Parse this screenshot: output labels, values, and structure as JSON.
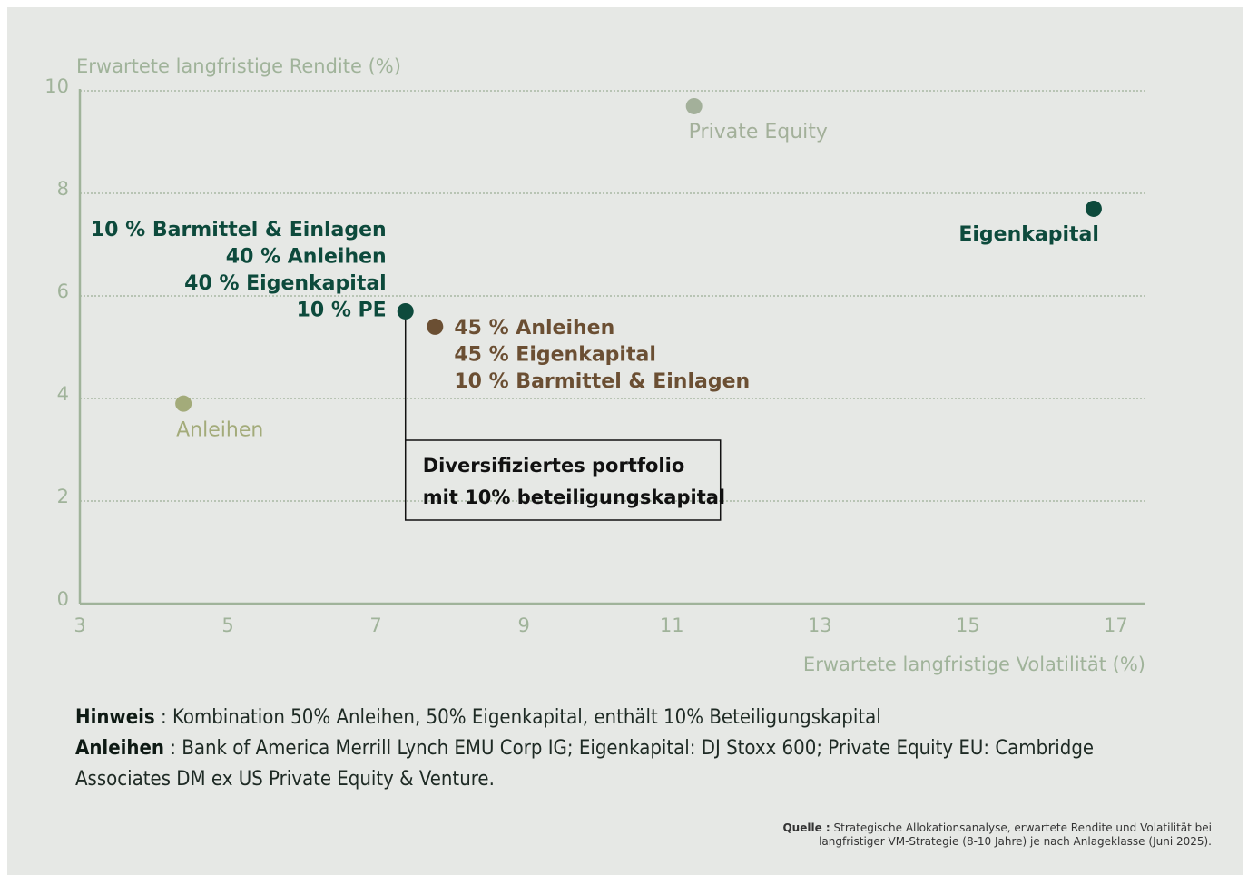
{
  "chart_data": {
    "type": "scatter",
    "y_label": "Erwartete langfristige Rendite (%)",
    "x_label": "Erwartete langfristige Volatilität (%)",
    "xlim": [
      3,
      17.4
    ],
    "ylim": [
      0,
      10
    ],
    "xticks": [
      3,
      5,
      7,
      9,
      11,
      13,
      15,
      17
    ],
    "yticks": [
      0,
      2,
      4,
      6,
      8,
      10
    ],
    "grid": true,
    "series": [
      {
        "label": [
          "Private Equity"
        ],
        "color": "#a3b09a",
        "x": [
          11.3
        ],
        "values": [
          9.7
        ]
      },
      {
        "label": [
          "Eigenkapital"
        ],
        "color": "#0d4a3c",
        "x": [
          16.7
        ],
        "values": [
          7.7
        ]
      },
      {
        "label": [
          "Anleihen"
        ],
        "color": "#a3ab7a",
        "x": [
          4.4
        ],
        "values": [
          3.9
        ]
      },
      {
        "label": [
          "10 % Barmittel & Einlagen",
          "40 % Anleihen",
          "40 % Eigenkapital",
          "10 % PE"
        ],
        "color": "#0d4a3c",
        "x": [
          7.4
        ],
        "values": [
          5.7
        ]
      },
      {
        "label": [
          "45 % Anleihen",
          "45 % Eigenkapital",
          "10 % Barmittel & Einlagen"
        ],
        "color": "#6b4f33",
        "x": [
          7.8
        ],
        "values": [
          5.4
        ]
      }
    ],
    "annotation": [
      "Diversifiziertes portfolio",
      "mit 10% beteiligungskapital"
    ]
  },
  "notes": [
    {
      "label": "Hinweis",
      "text": " : Kombination 50% Anleihen, 50% Eigenkapital, enthält 10% Beteiligungskapital"
    },
    {
      "label": "Anleihen",
      "text": " : Bank of America Merrill Lynch EMU Corp IG; Eigenkapital: DJ Stoxx 600; Private Equity EU: Cambridge Associates DM ex US Private Equity & Venture."
    }
  ],
  "source": {
    "label": "Quelle :",
    "lines": [
      " Strategische Allokationsanalyse, erwartete Rendite und Volatilität bei",
      "langfristiger VM-Strategie (8-10 Jahre) je nach Anlageklasse (Juni 2025)."
    ]
  }
}
